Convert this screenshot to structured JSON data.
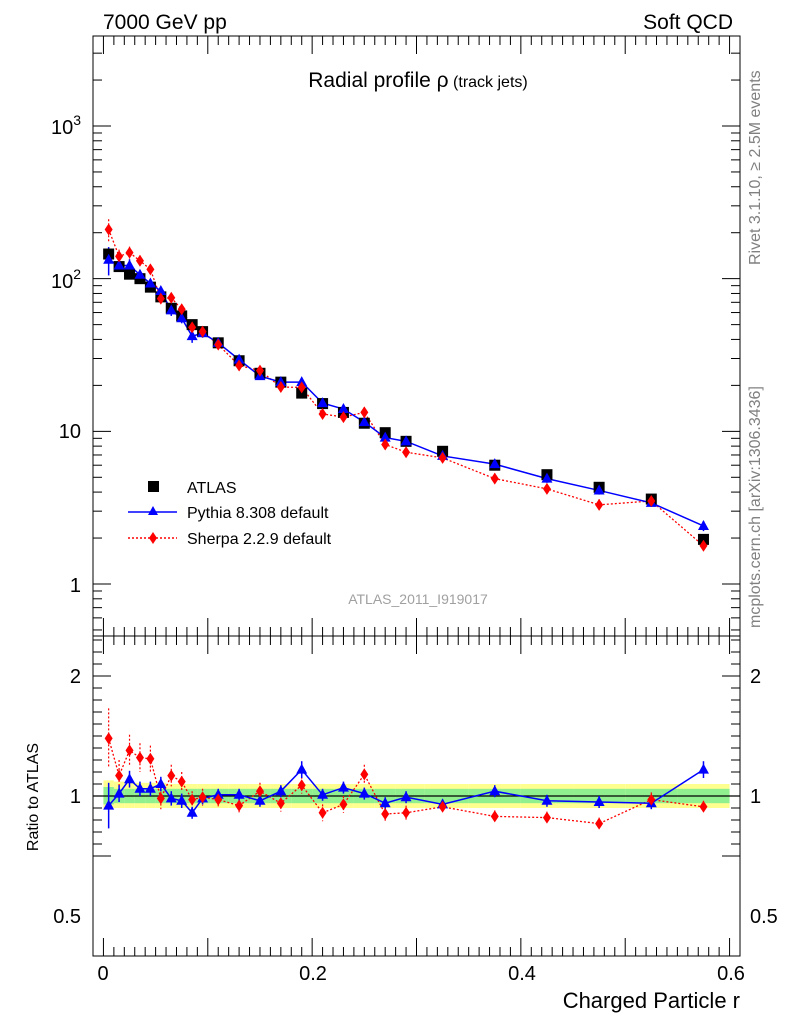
{
  "header": {
    "left": "7000 GeV pp",
    "right": "Soft QCD"
  },
  "plot_title": {
    "main": "Radial profile ",
    "symbol": "ρ",
    "sub": " (track jets)"
  },
  "side_text": {
    "rivet": "Rivet 3.1.10, ≥ 2.5M events",
    "mcplots": "mcplots.cern.ch [arXiv:1306.3436]"
  },
  "watermark": "ATLAS_2011_I919017",
  "legend": {
    "atlas": "ATLAS",
    "pythia": "Pythia 8.308 default",
    "sherpa": "Sherpa 2.2.9 default"
  },
  "colors": {
    "atlas": "#000000",
    "pythia": "#0000ff",
    "sherpa": "#ff0000",
    "band_inner": "#90f090",
    "band_outer": "#ffff90"
  },
  "chart_data": [
    {
      "type": "scatter",
      "panel": "main",
      "yscale": "log",
      "ylim": [
        0.5,
        4000
      ],
      "xlim": [
        -0.01,
        0.61
      ],
      "y_tick_labels": [
        "1",
        "10",
        "10^2",
        "10^3"
      ],
      "x": [
        0.005,
        0.015,
        0.025,
        0.035,
        0.045,
        0.055,
        0.065,
        0.075,
        0.085,
        0.095,
        0.11,
        0.13,
        0.15,
        0.17,
        0.19,
        0.21,
        0.23,
        0.25,
        0.27,
        0.29,
        0.325,
        0.375,
        0.425,
        0.475,
        0.525,
        0.575
      ],
      "series": [
        {
          "name": "ATLAS",
          "marker": "square",
          "values": [
            145,
            120,
            107,
            100,
            88,
            76,
            64,
            57,
            50,
            45,
            38,
            29,
            24,
            21,
            17.8,
            15.2,
            13.3,
            11.3,
            9.8,
            8.6,
            7.4,
            6.0,
            5.2,
            4.3,
            3.6,
            1.96
          ]
        },
        {
          "name": "Pythia 8.308 default",
          "marker": "triangle",
          "values": [
            133,
            122,
            122,
            106,
            93,
            83,
            62,
            55,
            42,
            44,
            38,
            29.5,
            23,
            21,
            21,
            15.3,
            14,
            11.5,
            9.1,
            8.6,
            6.9,
            6.1,
            4.9,
            4.1,
            3.4,
            2.4
          ],
          "errors": [
            28,
            10,
            12,
            7,
            6,
            5,
            5,
            4,
            4,
            3,
            2,
            1.5,
            1.3,
            1.2,
            1.3,
            0.9,
            0.8,
            0.7,
            0.6,
            0.5,
            0.4,
            0.35,
            0.3,
            0.25,
            0.2,
            0.18
          ]
        },
        {
          "name": "Sherpa 2.2.9 default",
          "marker": "diamond",
          "values": [
            210,
            140,
            148,
            131,
            115,
            74,
            75,
            63,
            48,
            45,
            37,
            27,
            25,
            19.5,
            19.4,
            13,
            12.4,
            13.3,
            8.2,
            7.3,
            6.7,
            4.9,
            4.2,
            3.3,
            3.5,
            1.78
          ],
          "errors": [
            35,
            15,
            14,
            11,
            9,
            6,
            5,
            5,
            4,
            3,
            2.5,
            2,
            1.8,
            1.5,
            1.4,
            1.1,
            1,
            1.1,
            0.7,
            0.6,
            0.5,
            0.4,
            0.35,
            0.3,
            0.3,
            0.15
          ]
        }
      ]
    },
    {
      "type": "scatter",
      "panel": "ratio",
      "ylabel": "Ratio to ATLAS",
      "xlabel": "Charged Particle r",
      "ylim": [
        0.4,
        2.4
      ],
      "xlim": [
        -0.01,
        0.61
      ],
      "y_ticks": [
        0.5,
        1,
        2
      ],
      "y_tick_labels": [
        "0.5",
        "1",
        "2"
      ],
      "x_ticks": [
        0,
        0.2,
        0.4,
        0.6
      ],
      "x_tick_labels": [
        "0",
        "0.2",
        "0.4",
        "0.6"
      ],
      "x": [
        0.005,
        0.015,
        0.025,
        0.035,
        0.045,
        0.055,
        0.065,
        0.075,
        0.085,
        0.095,
        0.11,
        0.13,
        0.15,
        0.17,
        0.19,
        0.21,
        0.23,
        0.25,
        0.27,
        0.29,
        0.325,
        0.375,
        0.425,
        0.475,
        0.525,
        0.575
      ],
      "band_inner": [
        [
          0.07,
          0.075
        ],
        [
          0.06,
          0.06
        ],
        [
          0.06,
          0.06
        ],
        [
          0.06,
          0.06
        ],
        [
          0.06,
          0.06
        ],
        [
          0.06,
          0.06
        ],
        [
          0.06,
          0.06
        ],
        [
          0.06,
          0.06
        ],
        [
          0.06,
          0.06
        ],
        [
          0.06,
          0.06
        ],
        [
          0.06,
          0.06
        ],
        [
          0.06,
          0.06
        ],
        [
          0.06,
          0.06
        ],
        [
          0.06,
          0.06
        ],
        [
          0.06,
          0.06
        ],
        [
          0.06,
          0.06
        ],
        [
          0.06,
          0.06
        ],
        [
          0.06,
          0.06
        ],
        [
          0.06,
          0.06
        ],
        [
          0.06,
          0.06
        ],
        [
          0.06,
          0.06
        ],
        [
          0.06,
          0.06
        ],
        [
          0.06,
          0.06
        ],
        [
          0.06,
          0.06
        ],
        [
          0.06,
          0.06
        ],
        [
          0.06,
          0.06
        ]
      ],
      "band_outer": [
        [
          0.1,
          0.13
        ],
        [
          0.1,
          0.12
        ],
        [
          0.1,
          0.11
        ],
        [
          0.1,
          0.11
        ],
        [
          0.1,
          0.11
        ],
        [
          0.1,
          0.11
        ],
        [
          0.1,
          0.1
        ],
        [
          0.1,
          0.1
        ],
        [
          0.1,
          0.1
        ],
        [
          0.1,
          0.1
        ],
        [
          0.1,
          0.1
        ],
        [
          0.1,
          0.1
        ],
        [
          0.1,
          0.1
        ],
        [
          0.1,
          0.1
        ],
        [
          0.1,
          0.1
        ],
        [
          0.1,
          0.1
        ],
        [
          0.1,
          0.1
        ],
        [
          0.1,
          0.1
        ],
        [
          0.1,
          0.1
        ],
        [
          0.1,
          0.1
        ],
        [
          0.1,
          0.1
        ],
        [
          0.1,
          0.1
        ],
        [
          0.1,
          0.1
        ],
        [
          0.1,
          0.1
        ],
        [
          0.1,
          0.1
        ],
        [
          0.1,
          0.1
        ]
      ],
      "series": [
        {
          "name": "Pythia 8.308 default",
          "marker": "triangle",
          "values": [
            0.92,
            1.02,
            1.14,
            1.06,
            1.06,
            1.1,
            0.98,
            0.96,
            0.86,
            0.98,
            1.01,
            1.01,
            0.96,
            1.04,
            1.22,
            1.01,
            1.07,
            1.02,
            0.94,
            0.99,
            0.93,
            1.04,
            0.96,
            0.95,
            0.94,
            1.22
          ],
          "errors": [
            0.19,
            0.07,
            0.07,
            0.06,
            0.06,
            0.06,
            0.06,
            0.06,
            0.05,
            0.05,
            0.05,
            0.05,
            0.05,
            0.05,
            0.07,
            0.05,
            0.05,
            0.05,
            0.05,
            0.05,
            0.04,
            0.05,
            0.05,
            0.05,
            0.05,
            0.07
          ]
        },
        {
          "name": "Sherpa 2.2.9 default",
          "marker": "diamond",
          "values": [
            1.48,
            1.17,
            1.38,
            1.32,
            1.31,
            0.98,
            1.17,
            1.12,
            0.97,
            0.99,
            0.97,
            0.92,
            1.04,
            0.94,
            1.09,
            0.86,
            0.93,
            1.18,
            0.85,
            0.86,
            0.91,
            0.83,
            0.82,
            0.77,
            0.97,
            0.91
          ],
          "errors": [
            0.25,
            0.13,
            0.13,
            0.12,
            0.11,
            0.09,
            0.09,
            0.08,
            0.07,
            0.07,
            0.06,
            0.06,
            0.07,
            0.07,
            0.07,
            0.07,
            0.07,
            0.08,
            0.06,
            0.06,
            0.05,
            0.05,
            0.05,
            0.05,
            0.06,
            0.05
          ]
        }
      ]
    }
  ]
}
